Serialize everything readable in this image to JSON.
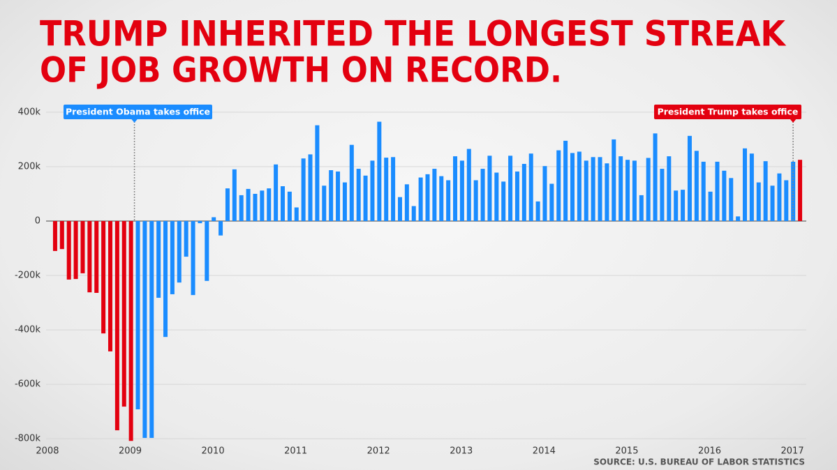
{
  "chart_data": {
    "type": "bar",
    "title": [
      "TRUMP INHERITED THE LONGEST STREAK",
      "OF JOB GROWTH ON RECORD."
    ],
    "annotations": [
      "President Obama takes office",
      "President Trump takes office"
    ],
    "source": "SOURCE: U.S. BUREAU OF LABOR STATISTICS",
    "categories": [
      "2008",
      null,
      null,
      null,
      null,
      null,
      null,
      null,
      null,
      null,
      null,
      null,
      "2009",
      null,
      null,
      null,
      null,
      null,
      null,
      null,
      null,
      null,
      null,
      null,
      "2010",
      null,
      null,
      null,
      null,
      null,
      null,
      null,
      null,
      null,
      null,
      null,
      "2011",
      null,
      null,
      null,
      null,
      null,
      null,
      null,
      null,
      null,
      null,
      null,
      "2012",
      null,
      null,
      null,
      null,
      null,
      null,
      null,
      null,
      null,
      null,
      null,
      "2013",
      null,
      null,
      null,
      null,
      null,
      null,
      null,
      null,
      null,
      null,
      null,
      "2014",
      null,
      null,
      null,
      null,
      null,
      null,
      null,
      null,
      null,
      null,
      null,
      "2015",
      null,
      null,
      null,
      null,
      null,
      null,
      null,
      null,
      null,
      null,
      null,
      "2016",
      null,
      null,
      null,
      null,
      null,
      null,
      null,
      null,
      null,
      null,
      null,
      "2017"
    ],
    "values": [
      -110,
      -103,
      -215,
      -213,
      -192,
      -262,
      -264,
      -413,
      -479,
      -769,
      -682,
      -808,
      -692,
      -797,
      -797,
      -282,
      -426,
      -269,
      -226,
      -131,
      -272,
      -8,
      -220,
      14,
      -53,
      120,
      190,
      95,
      118,
      100,
      112,
      120,
      208,
      128,
      108,
      50,
      230,
      245,
      352,
      130,
      187,
      182,
      142,
      280,
      192,
      167,
      222,
      365,
      233,
      235,
      88,
      135,
      55,
      160,
      172,
      192,
      165,
      150,
      238,
      222,
      265,
      150,
      192,
      240,
      178,
      145,
      240,
      182,
      210,
      248,
      72,
      202,
      137,
      260,
      295,
      250,
      255,
      222,
      235,
      235,
      212,
      300,
      238,
      225,
      222,
      95,
      232,
      322,
      192,
      238,
      112,
      115,
      313,
      258,
      218,
      108,
      218,
      185,
      158,
      17,
      267,
      248,
      142,
      220,
      130,
      175,
      150,
      218,
      225
    ],
    "colors": [
      "#e3000f",
      "#e3000f",
      "#e3000f",
      "#e3000f",
      "#e3000f",
      "#e3000f",
      "#e3000f",
      "#e3000f",
      "#e3000f",
      "#e3000f",
      "#e3000f",
      "#e3000f",
      "#1a8cff",
      "#1a8cff",
      "#1a8cff",
      "#1a8cff",
      "#1a8cff",
      "#1a8cff",
      "#1a8cff",
      "#1a8cff",
      "#1a8cff",
      "#1a8cff",
      "#1a8cff",
      "#1a8cff",
      "#1a8cff",
      "#1a8cff",
      "#1a8cff",
      "#1a8cff",
      "#1a8cff",
      "#1a8cff",
      "#1a8cff",
      "#1a8cff",
      "#1a8cff",
      "#1a8cff",
      "#1a8cff",
      "#1a8cff",
      "#1a8cff",
      "#1a8cff",
      "#1a8cff",
      "#1a8cff",
      "#1a8cff",
      "#1a8cff",
      "#1a8cff",
      "#1a8cff",
      "#1a8cff",
      "#1a8cff",
      "#1a8cff",
      "#1a8cff",
      "#1a8cff",
      "#1a8cff",
      "#1a8cff",
      "#1a8cff",
      "#1a8cff",
      "#1a8cff",
      "#1a8cff",
      "#1a8cff",
      "#1a8cff",
      "#1a8cff",
      "#1a8cff",
      "#1a8cff",
      "#1a8cff",
      "#1a8cff",
      "#1a8cff",
      "#1a8cff",
      "#1a8cff",
      "#1a8cff",
      "#1a8cff",
      "#1a8cff",
      "#1a8cff",
      "#1a8cff",
      "#1a8cff",
      "#1a8cff",
      "#1a8cff",
      "#1a8cff",
      "#1a8cff",
      "#1a8cff",
      "#1a8cff",
      "#1a8cff",
      "#1a8cff",
      "#1a8cff",
      "#1a8cff",
      "#1a8cff",
      "#1a8cff",
      "#1a8cff",
      "#1a8cff",
      "#1a8cff",
      "#1a8cff",
      "#1a8cff",
      "#1a8cff",
      "#1a8cff",
      "#1a8cff",
      "#1a8cff",
      "#1a8cff",
      "#1a8cff",
      "#1a8cff",
      "#1a8cff",
      "#1a8cff",
      "#1a8cff",
      "#1a8cff",
      "#1a8cff",
      "#1a8cff",
      "#1a8cff",
      "#1a8cff",
      "#1a8cff",
      "#1a8cff",
      "#1a8cff",
      "#1a8cff",
      "#1a8cff",
      "#e3000f"
    ],
    "annotation_colors": [
      "#1a8cff",
      "#e3000f"
    ],
    "title_color": "#e3000f",
    "ylim": [
      -815,
      410
    ],
    "yticks": [
      {
        "value": 400,
        "label": "400k"
      },
      {
        "value": 200,
        "label": "200k"
      },
      0,
      {
        "value": -200,
        "label": "-200k"
      },
      {
        "value": -400,
        "label": "-400k"
      },
      {
        "value": -600,
        "label": "-600k"
      },
      {
        "value": -800,
        "label": "-800k"
      }
    ],
    "grid": true
  }
}
